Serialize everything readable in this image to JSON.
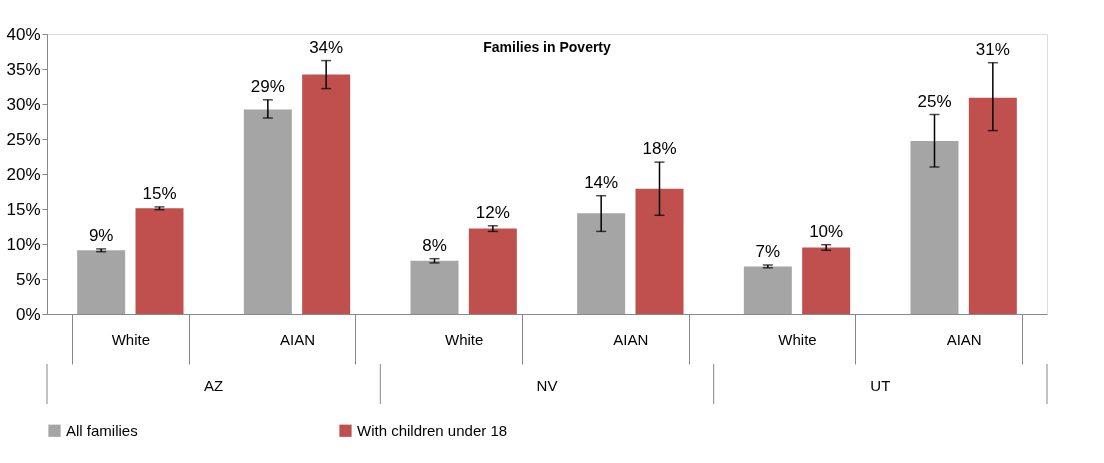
{
  "chart_data": {
    "type": "bar",
    "title": "Families in Poverty",
    "categories": [
      "White",
      "AIAN",
      "White",
      "AIAN",
      "White",
      "AIAN"
    ],
    "series": [
      {
        "name": "All families",
        "color": "#a5a5a5",
        "values": [
          9.1,
          29.2,
          7.6,
          14.4,
          6.8,
          24.7
        ],
        "errors": [
          0.2,
          [
            28.0,
            30.6
          ],
          0.3,
          [
            11.8,
            16.9
          ],
          0.2,
          [
            21.0,
            28.5
          ]
        ],
        "value_labels": [
          "9%",
          "29%",
          "8%",
          "14%",
          "7%",
          "25%"
        ]
      },
      {
        "name": "With  children under 18",
        "color": "#c0504d",
        "values": [
          15.1,
          34.2,
          12.2,
          17.9,
          9.5,
          30.9
        ],
        "errors": [
          0.2,
          [
            32.2,
            36.2
          ],
          0.4,
          [
            14.1,
            21.7
          ],
          0.4,
          [
            26.2,
            35.9
          ]
        ],
        "value_labels": [
          "15%",
          "34%",
          "12%",
          "18%",
          "10%",
          "31%"
        ]
      }
    ],
    "annotations": [
      "AZ",
      "NV",
      "UT"
    ],
    "ylim": [
      0,
      40
    ],
    "yticks": [
      {
        "value": 0,
        "label": "0%"
      },
      {
        "value": 5,
        "label": "5%"
      },
      {
        "value": 10,
        "label": "10%"
      },
      {
        "value": 15,
        "label": "15%"
      },
      {
        "value": 20,
        "label": "20%"
      },
      {
        "value": 25,
        "label": "25%"
      },
      {
        "value": 30,
        "label": "30%"
      },
      {
        "value": 35,
        "label": "35%"
      },
      {
        "value": 40,
        "label": "40%"
      }
    ],
    "grid": false,
    "legend": "bottom"
  }
}
